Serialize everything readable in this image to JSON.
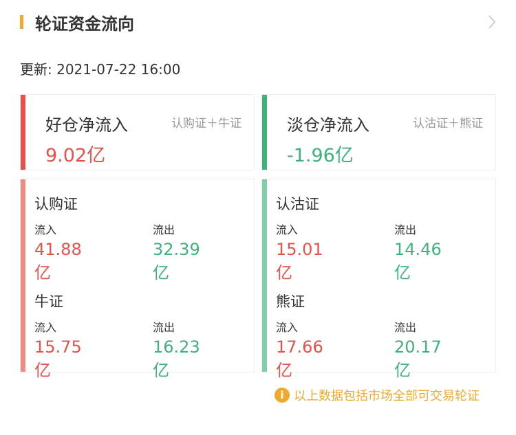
{
  "header": {
    "title": "轮证资金流向"
  },
  "update": "更新: 2021-07-22 16:00",
  "bull": {
    "name": "好仓净流入",
    "sub": "认购证＋牛证",
    "value": "9.02亿"
  },
  "bear": {
    "name": "淡仓净流入",
    "sub": "认沽证＋熊证",
    "value": "-1.96亿"
  },
  "left": [
    {
      "title": "认购证",
      "in_label": "流入",
      "in": "41.88亿",
      "out_label": "流出",
      "out": "32.39亿"
    },
    {
      "title": "牛证",
      "in_label": "流入",
      "in": "15.75亿",
      "out_label": "流出",
      "out": "16.23亿"
    }
  ],
  "right": [
    {
      "title": "认沽证",
      "in_label": "流入",
      "in": "15.01亿",
      "out_label": "流出",
      "out": "14.46亿"
    },
    {
      "title": "熊证",
      "in_label": "流入",
      "in": "17.66亿",
      "out_label": "流出",
      "out": "20.17亿"
    }
  ],
  "note": "以上数据包括市场全部可交易轮证",
  "colors": {
    "accent": "#f0a92e",
    "up": "#e8504a",
    "down": "#3db37c",
    "up_light": "#f28b82",
    "down_light": "#7fcfa8"
  }
}
